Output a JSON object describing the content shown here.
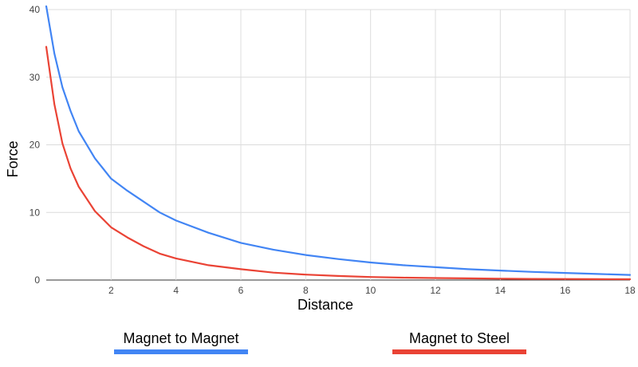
{
  "chart_data": {
    "type": "line",
    "title": "",
    "xlabel": "Distance",
    "ylabel": "Force",
    "xlim": [
      0,
      18
    ],
    "ylim": [
      0,
      40
    ],
    "xticks": [
      "2",
      "4",
      "6",
      "8",
      "10",
      "12",
      "14",
      "16",
      "18"
    ],
    "yticks": [
      "0",
      "10",
      "20",
      "30",
      "40"
    ],
    "grid": true,
    "legend_position": "bottom",
    "series": [
      {
        "name": "Magnet to Magnet",
        "color": "#4285f4",
        "x": [
          0,
          0.25,
          0.5,
          0.75,
          1,
          1.5,
          2,
          2.5,
          3,
          3.5,
          4,
          5,
          6,
          7,
          8,
          9,
          10,
          11,
          12,
          13,
          14,
          15,
          16,
          17,
          18
        ],
        "y": [
          40.5,
          33.5,
          28.5,
          25,
          22,
          18,
          15,
          13.2,
          11.6,
          10,
          8.8,
          7,
          5.5,
          4.5,
          3.7,
          3.1,
          2.6,
          2.2,
          1.9,
          1.6,
          1.4,
          1.2,
          1.05,
          0.9,
          0.75
        ]
      },
      {
        "name": "Magnet to Steel",
        "color": "#ea4335",
        "x": [
          0,
          0.25,
          0.5,
          0.75,
          1,
          1.5,
          2,
          2.5,
          3,
          3.5,
          4,
          5,
          6,
          7,
          8,
          9,
          10,
          11,
          12,
          13,
          14,
          15,
          16,
          17,
          18
        ],
        "y": [
          34.5,
          26,
          20.2,
          16.5,
          13.8,
          10.2,
          7.8,
          6.3,
          5,
          3.9,
          3.2,
          2.2,
          1.6,
          1.1,
          0.8,
          0.6,
          0.45,
          0.35,
          0.3,
          0.25,
          0.2,
          0.17,
          0.15,
          0.13,
          0.12
        ]
      }
    ]
  }
}
